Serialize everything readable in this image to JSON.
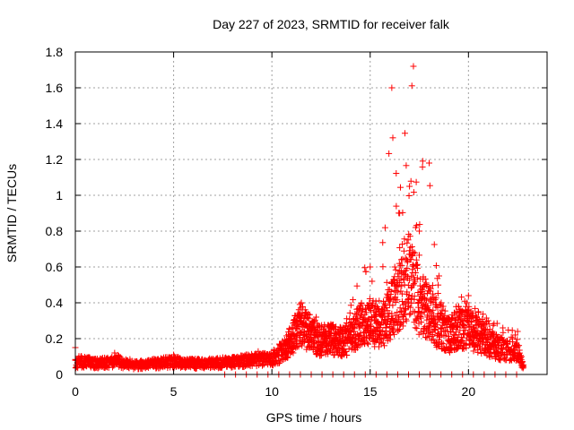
{
  "chart_data": {
    "type": "scatter",
    "title": "Day 227 of 2023, SRMTID for receiver falk",
    "xlabel": "GPS time / hours",
    "ylabel": "SRMTID / TECUs",
    "xlim": [
      0,
      24
    ],
    "ylim": [
      0,
      1.8
    ],
    "grid": true,
    "marker": "+",
    "color": "#ff0000",
    "x_ticks": [
      0,
      5,
      10,
      15,
      20
    ],
    "x_tick_labels": [
      "0",
      "5",
      "10",
      "15",
      "20"
    ],
    "y_ticks": [
      0,
      0.2,
      0.4,
      0.6,
      0.8,
      1.0,
      1.2,
      1.4,
      1.6,
      1.8
    ],
    "y_tick_labels": [
      "0",
      "0.2",
      "0.4",
      "0.6",
      "0.8",
      "1",
      "1.2",
      "1.4",
      "1.6",
      "1.8"
    ],
    "series": [
      {
        "name": "SRMTID",
        "envelope_hours": [
          0,
          0.5,
          1,
          2,
          3,
          4,
          5,
          6,
          7,
          8,
          9,
          10,
          10.5,
          11,
          11.5,
          12,
          12.5,
          13,
          13.5,
          14,
          14.5,
          15,
          15.5,
          16,
          16.5,
          17,
          17.5,
          18,
          18.5,
          19,
          19.5,
          20,
          20.5,
          21,
          21.5,
          22,
          22.5,
          22.8
        ],
        "envelope_typical": [
          0.06,
          0.07,
          0.06,
          0.07,
          0.05,
          0.06,
          0.07,
          0.06,
          0.06,
          0.07,
          0.08,
          0.09,
          0.12,
          0.2,
          0.28,
          0.22,
          0.18,
          0.2,
          0.18,
          0.2,
          0.28,
          0.3,
          0.25,
          0.35,
          0.45,
          0.55,
          0.4,
          0.35,
          0.25,
          0.22,
          0.25,
          0.25,
          0.22,
          0.18,
          0.15,
          0.13,
          0.12,
          0.04
        ],
        "envelope_max": [
          0.15,
          0.1,
          0.1,
          0.12,
          0.08,
          0.08,
          0.11,
          0.09,
          0.09,
          0.1,
          0.13,
          0.15,
          0.2,
          0.3,
          0.42,
          0.35,
          0.3,
          0.3,
          0.28,
          0.4,
          0.64,
          0.6,
          0.4,
          1.6,
          1.0,
          1.72,
          1.3,
          1.2,
          0.45,
          0.3,
          0.44,
          0.46,
          0.35,
          0.33,
          0.3,
          0.28,
          0.24,
          0.07
        ],
        "x": [
          0.0,
          0.15,
          0.3,
          0.5,
          0.75,
          1.0,
          1.25,
          1.5,
          1.75,
          2.0,
          2.25,
          2.5,
          2.75,
          3.0,
          3.25,
          3.5,
          3.75,
          4.0,
          4.25,
          4.5,
          4.75,
          5.0,
          5.25,
          5.5,
          5.75,
          6.0,
          6.25,
          6.5,
          6.75,
          7.0,
          7.25,
          7.5,
          7.75,
          8.0,
          8.25,
          8.5,
          8.75,
          9.0,
          9.25,
          9.5,
          9.75,
          10.0,
          10.25,
          10.5,
          10.75,
          11.0,
          11.25,
          11.5,
          11.75,
          12.0,
          12.25,
          12.5,
          12.75,
          13.0,
          13.25,
          13.5,
          13.75,
          14.0,
          14.25,
          14.5,
          14.75,
          15.0,
          15.25,
          15.5,
          15.75,
          16.0,
          16.1,
          16.25,
          16.5,
          16.75,
          17.0,
          17.2,
          17.35,
          17.5,
          17.75,
          18.0,
          18.1,
          18.25,
          18.5,
          18.75,
          19.0,
          19.25,
          19.5,
          19.75,
          20.0,
          20.25,
          20.5,
          20.75,
          21.0,
          21.25,
          21.5,
          21.75,
          22.0,
          22.25,
          22.5,
          22.75
        ],
        "y": [
          0.15,
          0.07,
          0.06,
          0.08,
          0.05,
          0.06,
          0.07,
          0.06,
          0.07,
          0.12,
          0.07,
          0.06,
          0.05,
          0.06,
          0.05,
          0.04,
          0.05,
          0.06,
          0.07,
          0.06,
          0.08,
          0.11,
          0.06,
          0.07,
          0.05,
          0.06,
          0.07,
          0.05,
          0.06,
          0.07,
          0.08,
          0.05,
          0.07,
          0.08,
          0.07,
          0.09,
          0.08,
          0.1,
          0.07,
          0.11,
          0.09,
          0.1,
          0.12,
          0.14,
          0.13,
          0.18,
          0.3,
          0.4,
          0.28,
          0.2,
          0.32,
          0.18,
          0.24,
          0.28,
          0.16,
          0.26,
          0.2,
          0.28,
          0.22,
          0.38,
          0.3,
          0.6,
          0.35,
          0.28,
          0.34,
          0.42,
          1.6,
          0.6,
          0.9,
          0.5,
          1.05,
          1.72,
          0.3,
          0.8,
          0.45,
          1.18,
          0.4,
          0.25,
          0.55,
          0.22,
          0.3,
          0.2,
          0.38,
          0.28,
          0.44,
          0.2,
          0.35,
          0.18,
          0.3,
          0.22,
          0.16,
          0.26,
          0.14,
          0.2,
          0.24,
          0.05
        ]
      }
    ]
  }
}
